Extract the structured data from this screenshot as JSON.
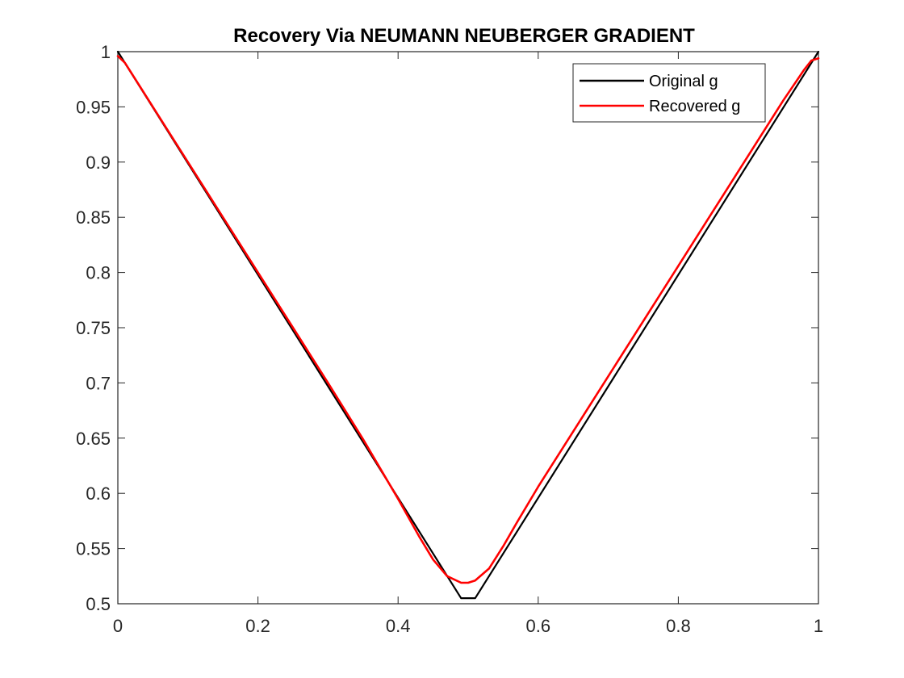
{
  "chart_data": {
    "type": "line",
    "title": "Recovery Via NEUMANN NEUBERGER GRADIENT",
    "xlabel": "",
    "ylabel": "",
    "xlim": [
      0,
      1
    ],
    "ylim": [
      0.5,
      1
    ],
    "xticks": [
      0,
      0.2,
      0.4,
      0.6,
      0.8,
      1
    ],
    "xtick_labels": [
      "0",
      "0.2",
      "0.4",
      "0.6",
      "0.8",
      "1"
    ],
    "yticks": [
      0.5,
      0.55,
      0.6,
      0.65,
      0.7,
      0.75,
      0.8,
      0.85,
      0.9,
      0.95,
      1
    ],
    "ytick_labels": [
      "0.5",
      "0.55",
      "0.6",
      "0.65",
      "0.7",
      "0.75",
      "0.8",
      "0.85",
      "0.9",
      "0.95",
      "1"
    ],
    "grid": false,
    "box": true,
    "legend_position": "top-right",
    "series": [
      {
        "name": "Original g",
        "color": "#000000",
        "x": [
          0,
          0.49,
          0.5,
          0.51,
          1
        ],
        "y": [
          1,
          0.505,
          0.505,
          0.505,
          1
        ]
      },
      {
        "name": "Recovered g",
        "color": "#ff0000",
        "x": [
          0,
          0.01,
          0.02,
          0.05,
          0.1,
          0.15,
          0.2,
          0.25,
          0.3,
          0.35,
          0.4,
          0.43,
          0.45,
          0.47,
          0.49,
          0.5,
          0.51,
          0.53,
          0.55,
          0.57,
          0.6,
          0.65,
          0.7,
          0.75,
          0.8,
          0.85,
          0.9,
          0.95,
          0.98,
          0.99,
          1
        ],
        "y": [
          0.996,
          0.99,
          0.98,
          0.95,
          0.9,
          0.85,
          0.8,
          0.75,
          0.7,
          0.649,
          0.595,
          0.561,
          0.54,
          0.525,
          0.519,
          0.519,
          0.521,
          0.532,
          0.552,
          0.574,
          0.606,
          0.656,
          0.706,
          0.756,
          0.806,
          0.856,
          0.906,
          0.956,
          0.984,
          0.992,
          0.994
        ]
      }
    ]
  }
}
